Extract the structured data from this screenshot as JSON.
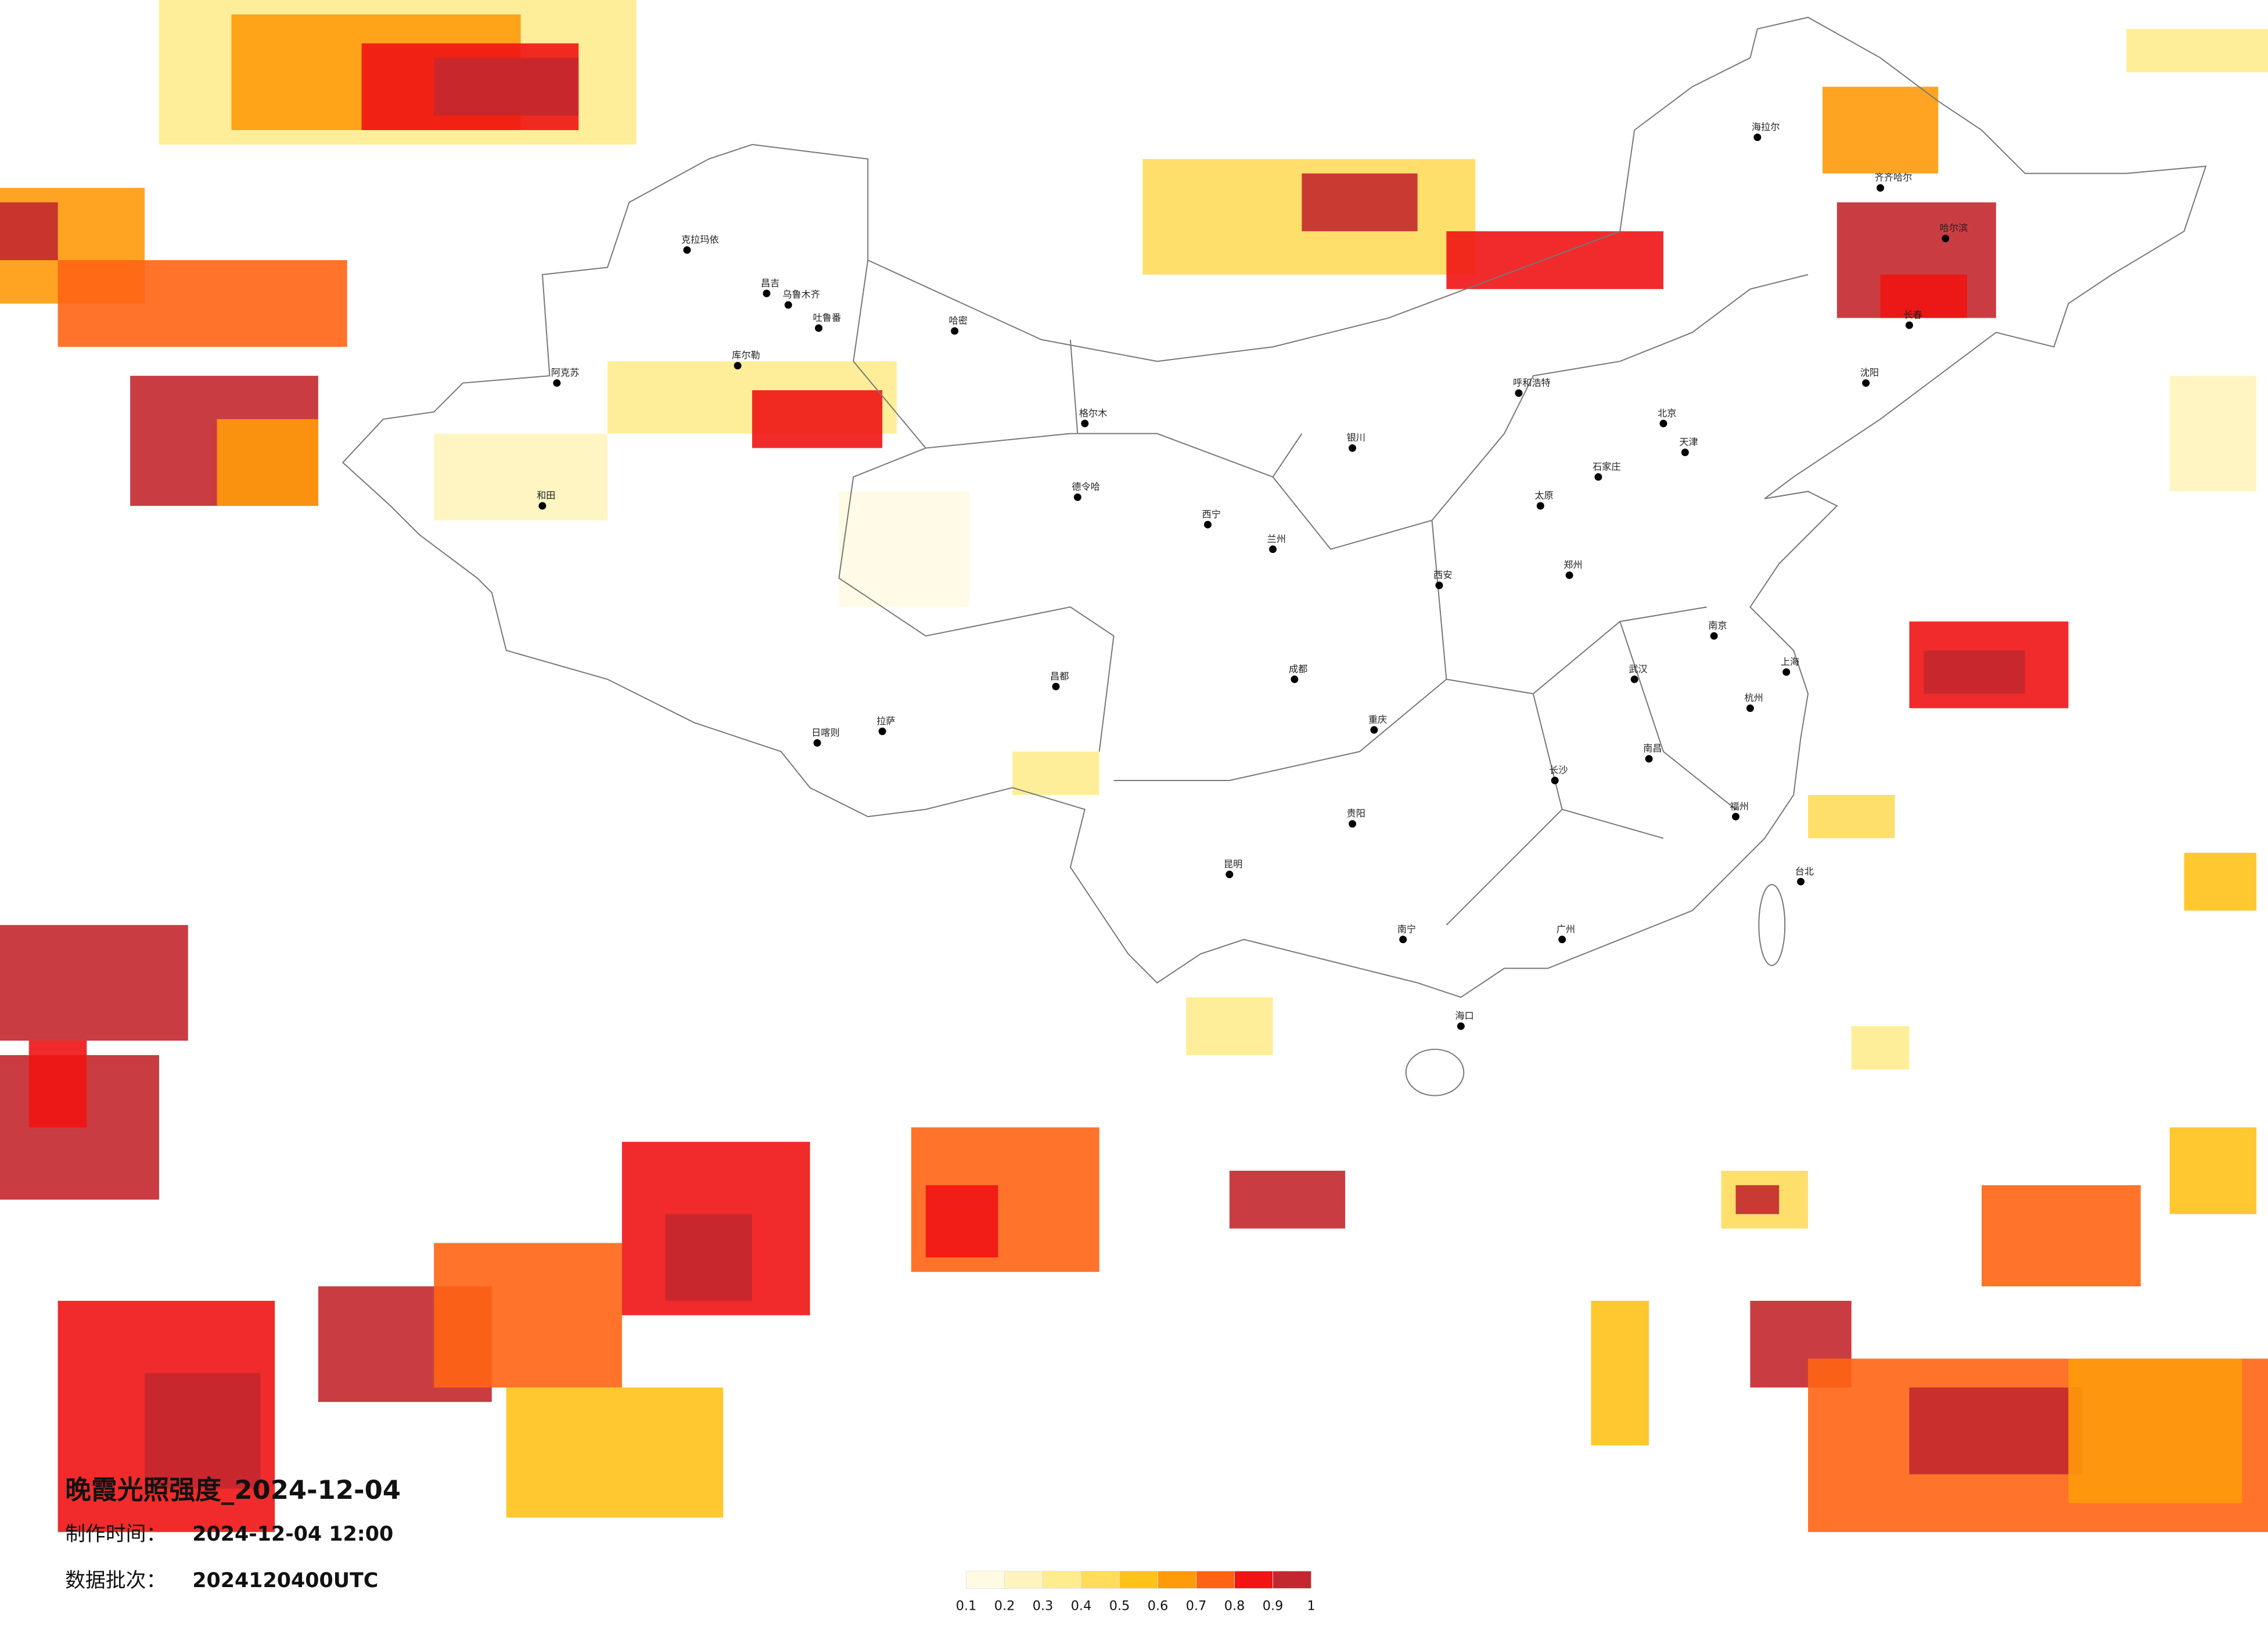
{
  "title": "晚霞光照强度_2024-12-04",
  "production_time": {
    "label": "制作时间：",
    "value": "2024-12-04 12:00"
  },
  "data_batch": {
    "label": "数据批次：",
    "value": "2024120400UTC"
  },
  "legend": {
    "colors": [
      "#fffbe3",
      "#fff4bd",
      "#ffec8e",
      "#ffdc5c",
      "#ffc21a",
      "#ff9a0a",
      "#ff6414",
      "#f01414",
      "#c3282e"
    ],
    "ticks": [
      0.1,
      0.2,
      0.3,
      0.4,
      0.5,
      0.6,
      0.7,
      0.8,
      0.9,
      1
    ]
  },
  "cities": [
    "克拉玛依",
    "昌吉",
    "乌鲁木齐",
    "吐鲁番",
    "哈密",
    "库尔勒",
    "阿克苏",
    "和田",
    "格尔木",
    "德令哈",
    "拉萨",
    "日喀则",
    "昌都",
    "西宁",
    "兰州",
    "银川",
    "呼和浩特",
    "北京",
    "天津",
    "石家庄",
    "太原",
    "郑州",
    "西安",
    "武汉",
    "南京",
    "上海",
    "杭州",
    "长沙",
    "南昌",
    "福州",
    "广州",
    "南宁",
    "昆明",
    "贵阳",
    "成都",
    "重庆",
    "海口",
    "台北",
    "哈尔滨",
    "长春",
    "沈阳",
    "齐齐哈尔",
    "海拉尔"
  ]
}
